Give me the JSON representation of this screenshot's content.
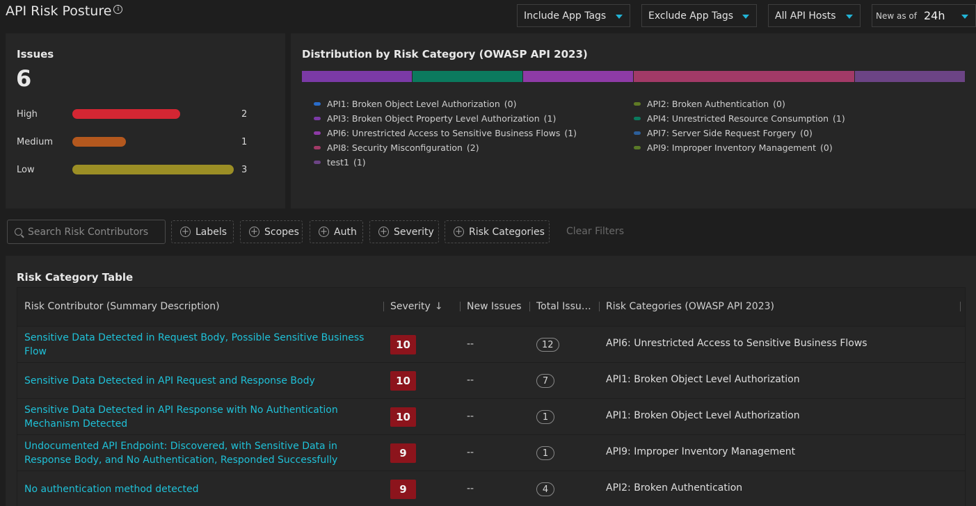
{
  "header": {
    "title": "API Risk Posture",
    "info_icon": "info-icon",
    "include_tags": "Include App Tags",
    "exclude_tags": "Exclude App Tags",
    "hosts": "All API Hosts",
    "new_as_of_label": "New as of",
    "new_as_of_value": "24h"
  },
  "issues": {
    "title": "Issues",
    "total": "6",
    "rows": [
      {
        "label": "High",
        "value": "2",
        "fraction": 0.67,
        "color": "#d42633"
      },
      {
        "label": "Medium",
        "value": "1",
        "fraction": 0.33,
        "color": "#b4581e"
      },
      {
        "label": "Low",
        "value": "3",
        "fraction": 1.0,
        "color": "#9b8e25"
      }
    ]
  },
  "distribution": {
    "title": "Distribution by Risk Category (OWASP API 2023)",
    "segments": [
      {
        "name": "API3",
        "value": 1,
        "color": "#7b3aa6"
      },
      {
        "name": "API4",
        "value": 1,
        "color": "#0b7a5e"
      },
      {
        "name": "API6",
        "value": 1,
        "color": "#8e3ba6"
      },
      {
        "name": "API8",
        "value": 2,
        "color": "#a23a67"
      },
      {
        "name": "test1",
        "value": 1,
        "color": "#6c4485"
      }
    ],
    "legend_left": [
      {
        "label": "API1: Broken Object Level Authorization",
        "count": "(0)",
        "color": "#2a6cc9"
      },
      {
        "label": "API3: Broken Object Property Level Authorization",
        "count": "(1)",
        "color": "#7b3aa6"
      },
      {
        "label": "API6: Unrestricted Access to Sensitive Business Flows",
        "count": "(1)",
        "color": "#8e3ba6"
      },
      {
        "label": "API8: Security Misconfiguration",
        "count": "(2)",
        "color": "#a23a67"
      },
      {
        "label": "test1",
        "count": "(1)",
        "color": "#6c4485"
      }
    ],
    "legend_right": [
      {
        "label": "API2: Broken Authentication",
        "count": "(0)",
        "color": "#5f7a24"
      },
      {
        "label": "API4: Unrestricted Resource Consumption",
        "count": "(1)",
        "color": "#0b7a5e"
      },
      {
        "label": "API7: Server Side Request Forgery",
        "count": "(0)",
        "color": "#2d5f9a"
      },
      {
        "label": "API9: Improper Inventory Management",
        "count": "(0)",
        "color": "#5a7a28"
      }
    ]
  },
  "filters": {
    "search_placeholder": "Search Risk Contributors",
    "labels": "Labels",
    "scopes": "Scopes",
    "auth": "Auth",
    "severity": "Severity",
    "risk_categories": "Risk Categories",
    "clear": "Clear Filters"
  },
  "table": {
    "title": "Risk Category Table",
    "columns": {
      "contributor": "Risk Contributor (Summary Description)",
      "severity": "Severity",
      "new_issues": "New Issues",
      "total_issues": "Total Issu…",
      "categories": "Risk Categories (OWASP API 2023)"
    },
    "rows": [
      {
        "contributor": "Sensitive Data Detected in Request Body, Possible Sensitive Business Flow",
        "severity": "10",
        "new_issues": "--",
        "total": "12",
        "category": "API6: Unrestricted Access to Sensitive Business Flows"
      },
      {
        "contributor": "Sensitive Data Detected in API Request and Response Body",
        "severity": "10",
        "new_issues": "--",
        "total": "7",
        "category": "API1: Broken Object Level Authorization"
      },
      {
        "contributor": "Sensitive Data Detected in API Response with No Authentication Mechanism Detected",
        "severity": "10",
        "new_issues": "--",
        "total": "1",
        "category": "API1: Broken Object Level Authorization"
      },
      {
        "contributor": "Undocumented API Endpoint: Discovered, with Sensitive Data in Response Body, and No Authentication, Responded Successfully",
        "severity": "9",
        "new_issues": "--",
        "total": "1",
        "category": "API9: Improper Inventory Management"
      },
      {
        "contributor": "No authentication method detected",
        "severity": "9",
        "new_issues": "--",
        "total": "4",
        "category": "API2: Broken Authentication"
      }
    ]
  }
}
